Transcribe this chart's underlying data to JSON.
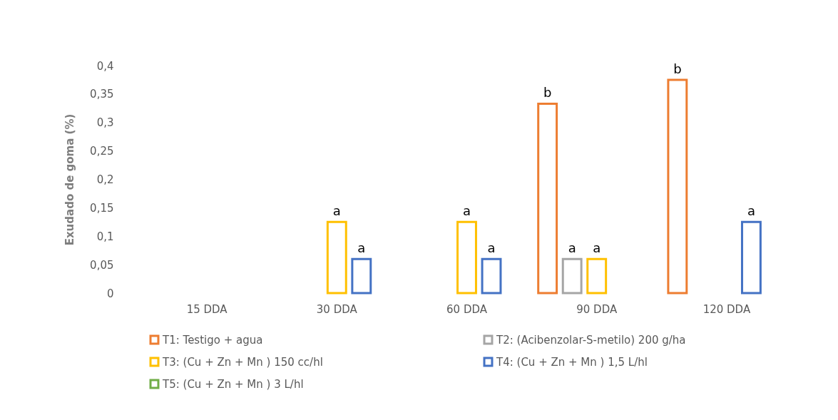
{
  "chart_data": {
    "type": "bar",
    "ylabel": "Exudado de goma (%)",
    "categories": [
      "15 DDA",
      "30 DDA",
      "60 DDA",
      "90 DDA",
      "120  DDA"
    ],
    "series": [
      {
        "name": "T1: Testigo + agua",
        "color": "#ed7d31",
        "values": [
          null,
          null,
          null,
          0.333,
          0.375
        ],
        "value_labels": [
          null,
          null,
          null,
          "b",
          "b"
        ]
      },
      {
        "name": "T2: (Acibenzolar-S-metilo) 200 g/ha",
        "color": "#a5a5a5",
        "values": [
          null,
          null,
          null,
          0.06,
          null
        ],
        "value_labels": [
          null,
          null,
          null,
          "a",
          null
        ]
      },
      {
        "name": "T3: (Cu + Zn + Mn ) 150 cc/hl",
        "color": "#ffc000",
        "values": [
          null,
          0.125,
          0.125,
          0.06,
          null
        ],
        "value_labels": [
          null,
          "a",
          "a",
          "a",
          null
        ]
      },
      {
        "name": "T4: (Cu + Zn + Mn ) 1,5 L/hl",
        "color": "#4472c4",
        "values": [
          null,
          0.06,
          0.06,
          null,
          0.125
        ],
        "value_labels": [
          null,
          "a",
          "a",
          null,
          "a"
        ]
      },
      {
        "name": "T5: (Cu + Zn + Mn ) 3 L/hl",
        "color": "#70ad47",
        "values": [
          null,
          null,
          null,
          null,
          null
        ]
      }
    ],
    "ylim": [
      0,
      0.4
    ],
    "yticks": [
      0,
      {
        "value": 0.05,
        "label": "0,05"
      },
      {
        "value": 0.1,
        "label": "0,1"
      },
      {
        "value": 0.15,
        "label": "0,15"
      },
      {
        "value": 0.2,
        "label": "0,2"
      },
      {
        "value": 0.25,
        "label": "0,25"
      },
      {
        "value": 0.3,
        "label": "0,3"
      },
      {
        "value": 0.35,
        "label": "0,35"
      },
      {
        "value": 0.4,
        "label": "0,4"
      }
    ],
    "grid": false,
    "legend": "bottom"
  }
}
